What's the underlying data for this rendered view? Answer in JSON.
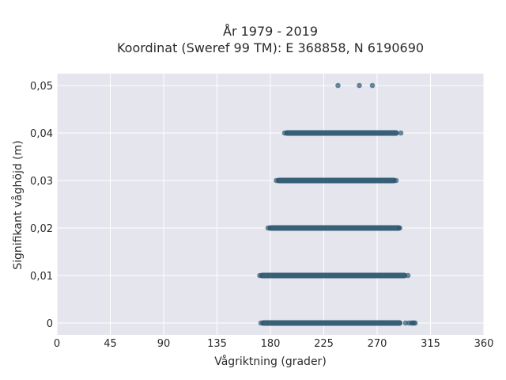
{
  "chart_data": {
    "type": "scatter",
    "title": "År 1979 - 2019",
    "subtitle": "Koordinat (Sweref 99 TM): E 368858, N 6190690",
    "xlabel": "Vågriktning (grader)",
    "ylabel": "Signifikant våghöjd (m)",
    "xlim": [
      0,
      360
    ],
    "ylim": [
      -0.0025,
      0.0525
    ],
    "xticks": [
      0,
      45,
      90,
      135,
      180,
      225,
      270,
      315,
      360
    ],
    "xtick_labels": [
      "0",
      "45",
      "90",
      "135",
      "180",
      "225",
      "270",
      "315",
      "360"
    ],
    "yticks": [
      0,
      0.01,
      0.02,
      0.03,
      0.04,
      0.05
    ],
    "ytick_labels": [
      "0",
      "0,01",
      "0,02",
      "0,03",
      "0,04",
      "0,05"
    ],
    "grid": true,
    "background_color": "#e5e5ee",
    "marker_color": "#2e5870",
    "bands": [
      {
        "y": 0.0,
        "x_min": 172,
        "x_max": 302,
        "dense_min": 174,
        "dense_max": 289,
        "outliers_x": [
          294,
          297,
          299,
          300,
          301
        ]
      },
      {
        "y": 0.01,
        "x_min": 171,
        "x_max": 296,
        "dense_min": 173,
        "dense_max": 293,
        "outliers_x": []
      },
      {
        "y": 0.02,
        "x_min": 178,
        "x_max": 289,
        "dense_min": 180,
        "dense_max": 288,
        "outliers_x": []
      },
      {
        "y": 0.03,
        "x_min": 185,
        "x_max": 286,
        "dense_min": 187,
        "dense_max": 284,
        "outliers_x": []
      },
      {
        "y": 0.04,
        "x_min": 192,
        "x_max": 290,
        "dense_min": 194,
        "dense_max": 286,
        "outliers_x": []
      },
      {
        "y": 0.05,
        "x_min": 237,
        "x_max": 266,
        "dense_min": null,
        "dense_max": null,
        "outliers_x": [
          237,
          255,
          266
        ]
      }
    ]
  }
}
